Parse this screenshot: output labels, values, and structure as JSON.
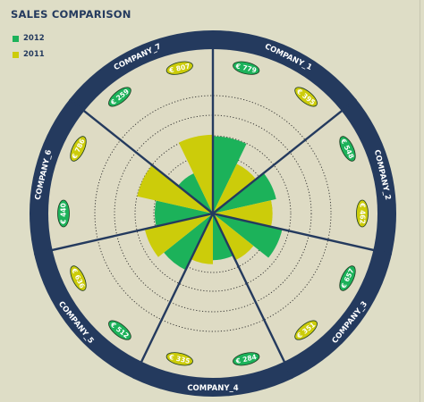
{
  "colors": {
    "series_2012": "#1cb25a",
    "series_2011": "#cccc0a",
    "ring": "#243a5e",
    "background": "#deddc6",
    "inner_disc": "#dedbc4",
    "label_text": "#ffffff",
    "title_text": "#243a5e"
  },
  "chart_data": {
    "type": "polar-area",
    "title": "SALES COMPARISON",
    "legend_position": "top-left",
    "categories": [
      "COMPANY_1",
      "COMPANY_2",
      "COMPANY_3",
      "COMPANY_4",
      "COMPANY_5",
      "COMPANY_6",
      "COMPANY_7"
    ],
    "series": [
      {
        "name": "2012",
        "values": [
          779,
          548,
          657,
          284,
          512,
          440,
          259
        ],
        "labels": [
          "€ 779",
          "€ 548",
          "€ 657",
          "€ 284",
          "€ 512",
          "€ 440",
          "€ 259"
        ]
      },
      {
        "name": "2011",
        "values": [
          395,
          462,
          351,
          335,
          636,
          786,
          807
        ],
        "labels": [
          "€ 395",
          "€ 462",
          "€ 351",
          "€ 335",
          "€ 636",
          "€ 786",
          "€ 807"
        ]
      }
    ],
    "grid": "dotted circles"
  }
}
